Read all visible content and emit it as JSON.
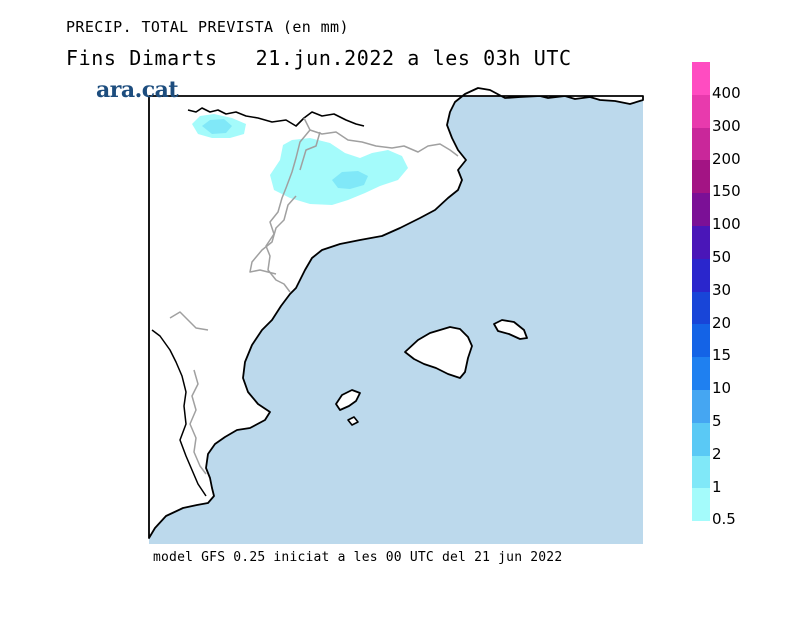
{
  "header": {
    "title": "PRECIP. TOTAL PREVISTA (en mm)",
    "subtitle": "Fins Dimarts   21.jun.2022 a les 03h UTC"
  },
  "brand": {
    "logo": "ara.cat"
  },
  "footer": {
    "text": "model GFS 0.25 iniciat a les 00 UTC del 21 jun 2022"
  },
  "map": {
    "sea_color": "#bcd9ec",
    "land_color": "#ffffff",
    "coast_color": "#000000",
    "border_color": "#a0a0a0"
  },
  "legend": {
    "items": [
      {
        "label": "400",
        "color": "#ff4cc1"
      },
      {
        "label": "300",
        "color": "#e83aad"
      },
      {
        "label": "200",
        "color": "#c9279a"
      },
      {
        "label": "150",
        "color": "#a31484"
      },
      {
        "label": "100",
        "color": "#7b1096"
      },
      {
        "label": "50",
        "color": "#4a16b8"
      },
      {
        "label": "30",
        "color": "#2a26cc"
      },
      {
        "label": "20",
        "color": "#1845d8"
      },
      {
        "label": "15",
        "color": "#1463e6"
      },
      {
        "label": "10",
        "color": "#1f80f0"
      },
      {
        "label": "5",
        "color": "#45a6f2"
      },
      {
        "label": "2",
        "color": "#5ac9f5"
      },
      {
        "label": "1",
        "color": "#80e8f8"
      },
      {
        "label": "0.5",
        "color": "#a4fbfb"
      }
    ]
  }
}
